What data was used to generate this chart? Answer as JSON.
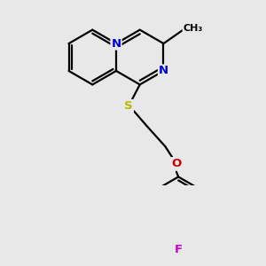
{
  "background_color": "#e8e8e8",
  "atom_colors": {
    "N": "#0000cc",
    "S": "#b8b800",
    "O": "#cc0000",
    "F": "#cc00cc",
    "C": "#000000"
  },
  "font_size": 9.5,
  "line_width": 1.6,
  "fig_width": 3.0,
  "fig_height": 3.0,
  "dpi": 100
}
